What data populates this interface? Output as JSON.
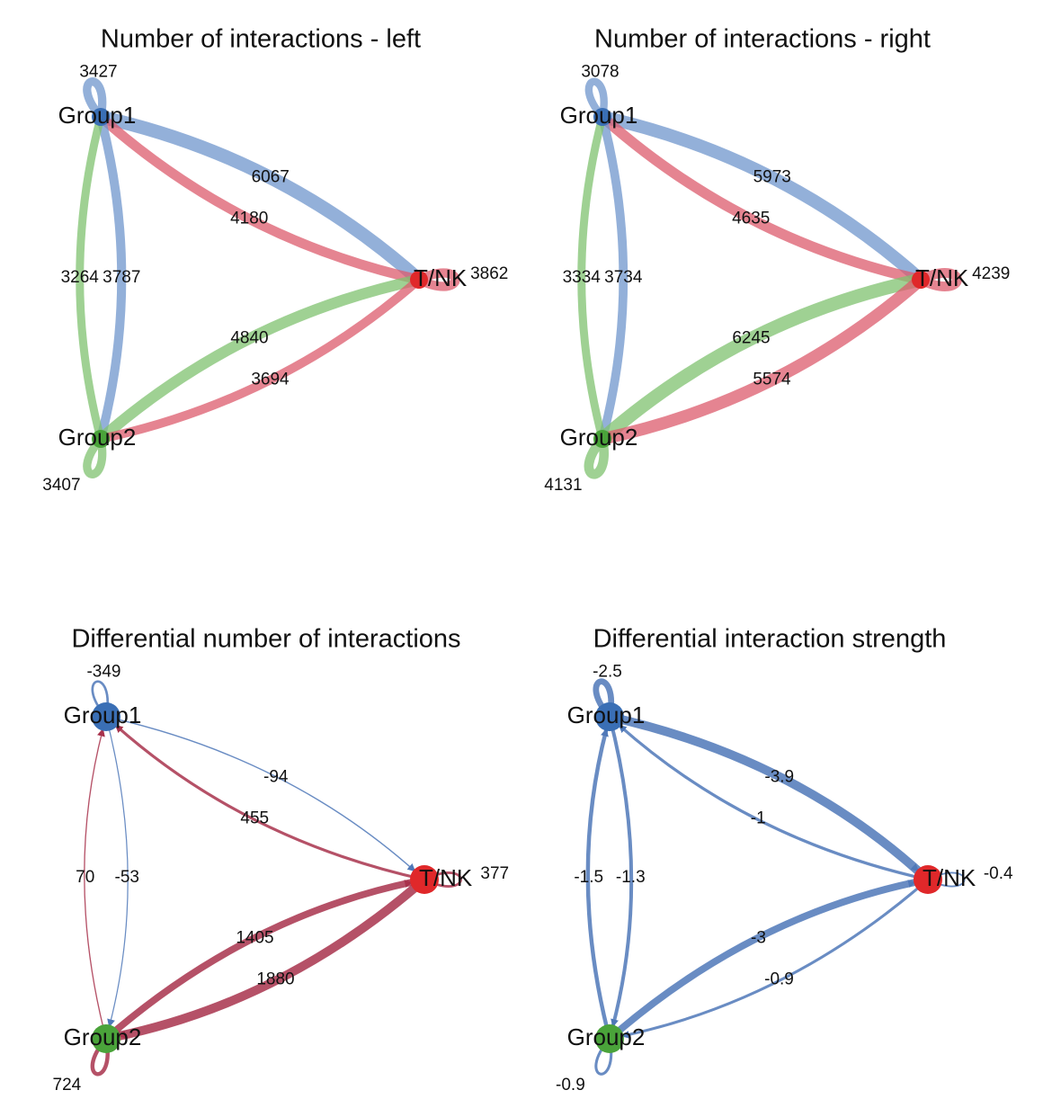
{
  "panels": [
    {
      "title": "Number of interactions - left",
      "nodes": [
        {
          "label": "Group1",
          "color": "#3a6fb5"
        },
        {
          "label": "T/NK",
          "color": "#e0282a"
        },
        {
          "label": "Group2",
          "color": "#4aa33a"
        }
      ],
      "edge_colors": [
        "#6f96cc",
        "#dc5b6c",
        "#7fc26f"
      ],
      "edges": [
        {
          "from": 0,
          "to": 0,
          "value": 3427
        },
        {
          "from": 0,
          "to": 1,
          "value": 6067
        },
        {
          "from": 1,
          "to": 0,
          "value": 4180
        },
        {
          "from": 0,
          "to": 2,
          "value": 3787
        },
        {
          "from": 2,
          "to": 0,
          "value": 3264
        },
        {
          "from": 2,
          "to": 1,
          "value": 4840
        },
        {
          "from": 1,
          "to": 2,
          "value": 3694
        },
        {
          "from": 1,
          "to": 1,
          "value": 3862
        },
        {
          "from": 2,
          "to": 2,
          "value": 3407
        }
      ]
    },
    {
      "title": "Number of interactions - right",
      "nodes": [
        {
          "label": "Group1",
          "color": "#3a6fb5"
        },
        {
          "label": "T/NK",
          "color": "#e0282a"
        },
        {
          "label": "Group2",
          "color": "#4aa33a"
        }
      ],
      "edge_colors": [
        "#6f96cc",
        "#dc5b6c",
        "#7fc26f"
      ],
      "edges": [
        {
          "from": 0,
          "to": 0,
          "value": 3078
        },
        {
          "from": 0,
          "to": 1,
          "value": 5973
        },
        {
          "from": 1,
          "to": 0,
          "value": 4635
        },
        {
          "from": 0,
          "to": 2,
          "value": 3734
        },
        {
          "from": 2,
          "to": 0,
          "value": 3334
        },
        {
          "from": 2,
          "to": 1,
          "value": 6245
        },
        {
          "from": 1,
          "to": 2,
          "value": 5574
        },
        {
          "from": 1,
          "to": 1,
          "value": 4239
        },
        {
          "from": 2,
          "to": 2,
          "value": 4131
        }
      ]
    },
    {
      "title": "Differential number of interactions",
      "nodes": [
        {
          "label": "Group1",
          "color": "#3a6fb5"
        },
        {
          "label": "T/NK",
          "color": "#e0282a"
        },
        {
          "label": "Group2",
          "color": "#4aa33a"
        }
      ],
      "positive_color": "#a8324c",
      "negative_color": "#4f78b8",
      "edges": [
        {
          "from": 0,
          "to": 0,
          "value": -349
        },
        {
          "from": 0,
          "to": 1,
          "value": -94
        },
        {
          "from": 1,
          "to": 0,
          "value": 455
        },
        {
          "from": 0,
          "to": 2,
          "value": -53
        },
        {
          "from": 2,
          "to": 0,
          "value": 70
        },
        {
          "from": 2,
          "to": 1,
          "value": 1405
        },
        {
          "from": 1,
          "to": 2,
          "value": 1880
        },
        {
          "from": 1,
          "to": 1,
          "value": 377
        },
        {
          "from": 2,
          "to": 2,
          "value": 724
        }
      ]
    },
    {
      "title": "Differential interaction strength",
      "nodes": [
        {
          "label": "Group1",
          "color": "#3a6fb5"
        },
        {
          "label": "T/NK",
          "color": "#e0282a"
        },
        {
          "label": "Group2",
          "color": "#4aa33a"
        }
      ],
      "positive_color": "#a8324c",
      "negative_color": "#4f78b8",
      "edges": [
        {
          "from": 0,
          "to": 0,
          "value": -2.5
        },
        {
          "from": 0,
          "to": 1,
          "value": -3.9
        },
        {
          "from": 1,
          "to": 0,
          "value": -1
        },
        {
          "from": 0,
          "to": 2,
          "value": -1.3
        },
        {
          "from": 2,
          "to": 0,
          "value": -1.5
        },
        {
          "from": 2,
          "to": 1,
          "value": -3
        },
        {
          "from": 1,
          "to": 2,
          "value": -0.9
        },
        {
          "from": 1,
          "to": 1,
          "value": -0.4
        },
        {
          "from": 2,
          "to": 2,
          "value": -0.9
        }
      ]
    }
  ]
}
